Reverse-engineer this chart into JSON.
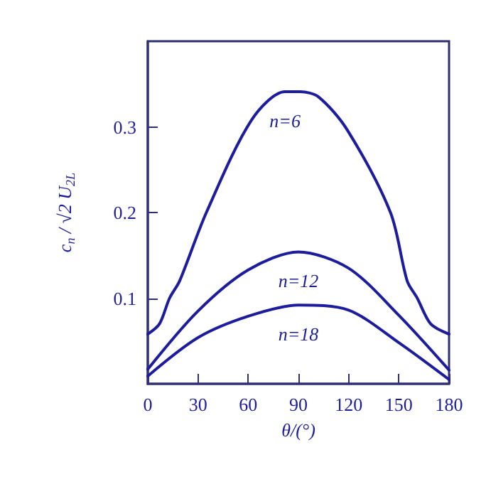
{
  "chart_data": {
    "type": "line",
    "xlabel": "θ/(°)",
    "ylabel": "c$_{n}$ / √2 U$_{2L}$",
    "x": [
      0,
      7,
      13,
      19,
      35,
      62,
      82,
      91,
      102,
      119,
      145,
      155,
      161,
      169,
      180
    ],
    "series": [
      {
        "name": "n=6",
        "color": "#1c1c9c",
        "values": [
          0.058,
          0.07,
          0.1,
          0.12,
          0.2,
          0.308,
          0.341,
          0.341,
          0.335,
          0.297,
          0.2,
          0.12,
          0.1,
          0.07,
          0.058
        ]
      },
      {
        "name": "n=12",
        "color": "#1c1c9c",
        "x": [
          0,
          30,
          60,
          90,
          120,
          150,
          180
        ],
        "values": [
          0.017,
          0.085,
          0.133,
          0.154,
          0.135,
          0.08,
          0.016
        ]
      },
      {
        "name": "n=18",
        "color": "#1c1c9c",
        "x": [
          0,
          30,
          60,
          90,
          120,
          150,
          180
        ],
        "values": [
          0.009,
          0.054,
          0.079,
          0.092,
          0.086,
          0.048,
          0.005
        ]
      }
    ],
    "xlim": [
      0,
      180
    ],
    "xticks": [
      0,
      30,
      60,
      90,
      120,
      150,
      180
    ],
    "ylim": [
      0,
      0.4
    ],
    "yticks": [
      0.1,
      0.2,
      0.3
    ],
    "grid": false,
    "marker": "none",
    "line_style": "solid"
  }
}
